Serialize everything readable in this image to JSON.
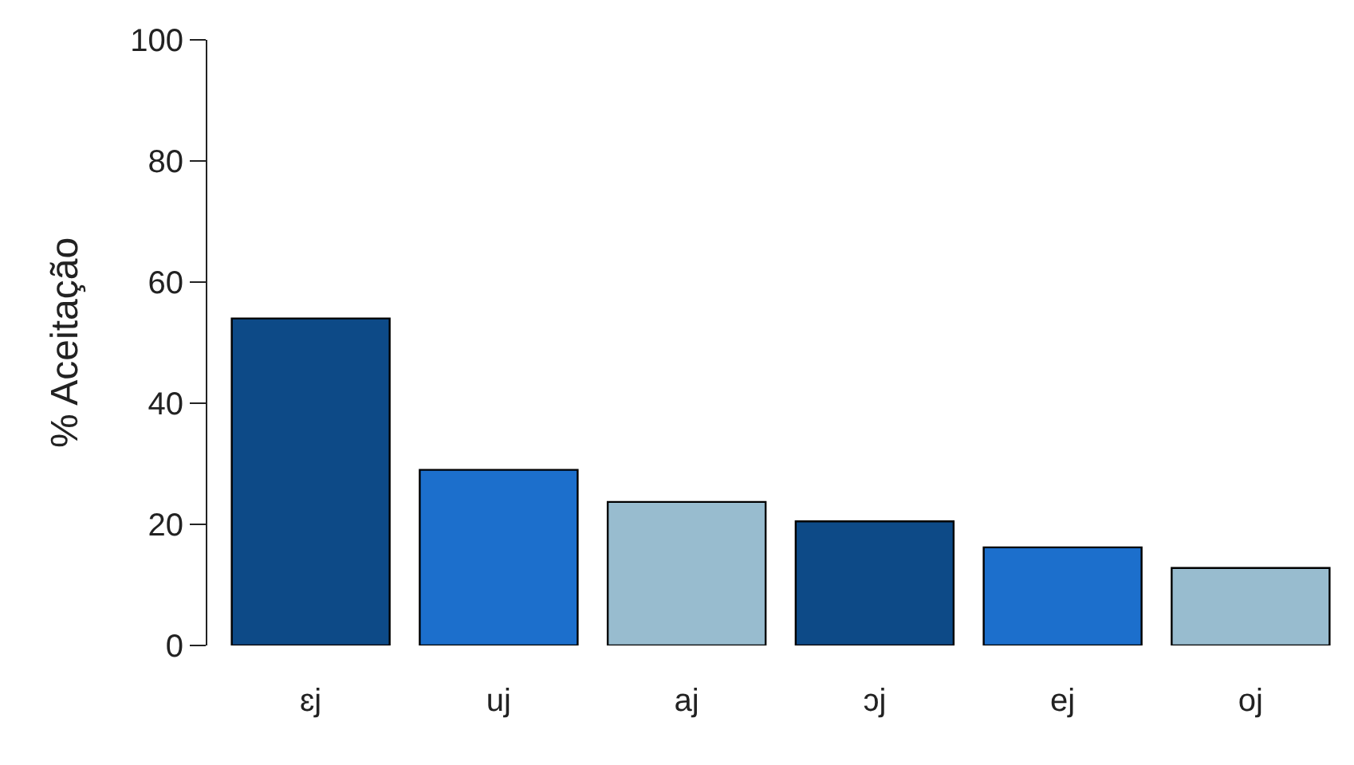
{
  "chart_data": {
    "type": "bar",
    "ylabel": "% Aceitação",
    "categories": [
      "ɛj",
      "uj",
      "aj",
      "ɔj",
      "ej",
      "oj"
    ],
    "values": [
      54.0,
      29.0,
      23.7,
      20.5,
      16.2,
      12.8
    ],
    "colors": [
      "#0d4a87",
      "#1c6fcc",
      "#98bccf",
      "#0d4a87",
      "#1c6fcc",
      "#98bccf"
    ],
    "ylim": [
      0,
      100
    ],
    "yticks": [
      0,
      20,
      40,
      60,
      80,
      100
    ]
  }
}
